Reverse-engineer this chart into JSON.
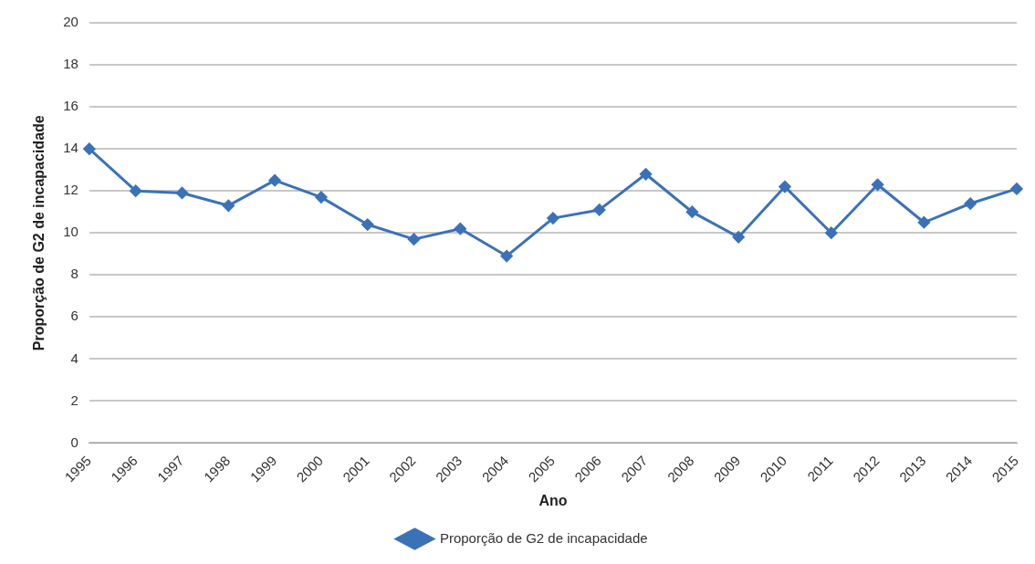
{
  "chart_data": {
    "type": "line",
    "xlabel": "Ano",
    "ylabel": "Proporção de G2 de incapacidade",
    "categories": [
      "1995",
      "1996",
      "1997",
      "1998",
      "1999",
      "2000",
      "2001",
      "2002",
      "2003",
      "2004",
      "2005",
      "2006",
      "2007",
      "2008",
      "2009",
      "2010",
      "2011",
      "2012",
      "2013",
      "2014",
      "2015"
    ],
    "series": [
      {
        "name": "Proporção de G2 de incapacidade",
        "color": "#3a72b8",
        "values": [
          14.0,
          12.0,
          11.9,
          11.3,
          12.5,
          11.7,
          10.4,
          9.7,
          10.2,
          8.9,
          10.7,
          11.1,
          12.8,
          11.0,
          9.8,
          12.2,
          10.0,
          12.3,
          10.5,
          11.4,
          12.1
        ]
      }
    ],
    "ylim": [
      0,
      20
    ],
    "yticks": [
      0,
      2,
      4,
      6,
      8,
      10,
      12,
      14,
      16,
      18,
      20
    ],
    "grid": "y",
    "legend": "bottom",
    "marker": "diamond",
    "line_style": "solid"
  }
}
